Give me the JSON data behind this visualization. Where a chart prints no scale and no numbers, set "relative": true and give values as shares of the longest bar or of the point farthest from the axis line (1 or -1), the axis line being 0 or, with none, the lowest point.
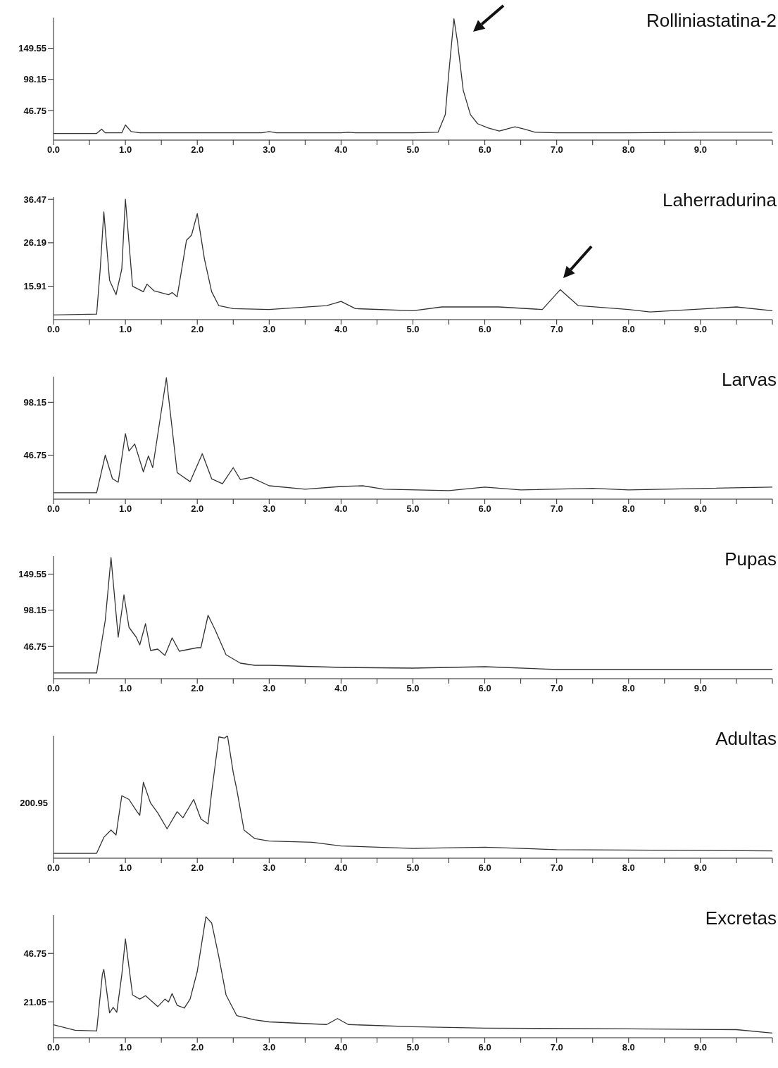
{
  "chart_data": [
    {
      "type": "line",
      "title": "Rolliniastatina-2",
      "color": "#333333",
      "xlim": [
        0,
        10
      ],
      "ylim": [
        -2,
        200
      ],
      "yticks": [
        46.75,
        98.15,
        149.55
      ],
      "xticks": [
        {
          "value": 0,
          "label": "0.0"
        },
        {
          "value": 0.5,
          "label": null
        },
        {
          "value": 1,
          "label": "1.0"
        },
        {
          "value": 1.5,
          "label": null
        },
        {
          "value": 2,
          "label": "2.0"
        },
        {
          "value": 2.5,
          "label": null
        },
        {
          "value": 3,
          "label": "3.0"
        },
        {
          "value": 3.5,
          "label": null
        },
        {
          "value": 4,
          "label": "4.0"
        },
        {
          "value": 4.5,
          "label": null
        },
        {
          "value": 5,
          "label": "5.0"
        },
        {
          "value": 5.5,
          "label": null
        },
        {
          "value": 6,
          "label": "6.0"
        },
        {
          "value": 6.5,
          "label": null
        },
        {
          "value": 7,
          "label": "7.0"
        },
        {
          "value": 7.5,
          "label": null
        },
        {
          "value": 8,
          "label": "8.0"
        },
        {
          "value": 8.5,
          "label": null
        },
        {
          "value": 9,
          "label": "9.0"
        },
        {
          "value": 9.5,
          "label": null
        },
        {
          "value": 10,
          "label": null
        }
      ],
      "x": [
        0,
        0.6,
        0.67,
        0.72,
        0.95,
        1.0,
        1.08,
        1.2,
        2.0,
        2.9,
        3.0,
        3.1,
        4.0,
        4.1,
        4.2,
        5.0,
        5.35,
        5.45,
        5.5,
        5.57,
        5.62,
        5.7,
        5.8,
        5.9,
        6.05,
        6.2,
        6.3,
        6.42,
        6.55,
        6.7,
        7.0,
        8.0,
        9.0,
        10.0
      ],
      "values": [
        9,
        9,
        16,
        10,
        10,
        23,
        12,
        10,
        10,
        10,
        12,
        10,
        10,
        11,
        10,
        10,
        11,
        40,
        110,
        198,
        160,
        80,
        40,
        25,
        18,
        13,
        16,
        20,
        16,
        11,
        10,
        10,
        11,
        11
      ]
    },
    {
      "type": "line",
      "title": "Laherradurina",
      "color": "#333333",
      "xlim": [
        0,
        10
      ],
      "ylim": [
        8,
        37
      ],
      "yticks": [
        15.91,
        26.19,
        36.47
      ],
      "xticks": [
        {
          "value": 0,
          "label": "0.0"
        },
        {
          "value": 0.5,
          "label": null
        },
        {
          "value": 1,
          "label": "1.0"
        },
        {
          "value": 1.5,
          "label": null
        },
        {
          "value": 2,
          "label": "2.0"
        },
        {
          "value": 2.5,
          "label": null
        },
        {
          "value": 3,
          "label": "3.0"
        },
        {
          "value": 3.5,
          "label": null
        },
        {
          "value": 4,
          "label": "4.0"
        },
        {
          "value": 4.5,
          "label": null
        },
        {
          "value": 5,
          "label": "5.0"
        },
        {
          "value": 5.5,
          "label": null
        },
        {
          "value": 6,
          "label": "6.0"
        },
        {
          "value": 6.5,
          "label": null
        },
        {
          "value": 7,
          "label": "7.0"
        },
        {
          "value": 7.5,
          "label": null
        },
        {
          "value": 8,
          "label": "8.0"
        },
        {
          "value": 8.5,
          "label": null
        },
        {
          "value": 9,
          "label": "9.0"
        },
        {
          "value": 9.5,
          "label": null
        },
        {
          "value": 10,
          "label": null
        }
      ],
      "x": [
        0,
        0.6,
        0.65,
        0.7,
        0.78,
        0.87,
        0.95,
        1.0,
        1.1,
        1.25,
        1.3,
        1.4,
        1.6,
        1.65,
        1.72,
        1.85,
        1.92,
        2.0,
        2.1,
        2.2,
        2.3,
        2.5,
        3.0,
        3.8,
        4.0,
        4.2,
        5.0,
        5.4,
        6.2,
        6.8,
        7.05,
        7.3,
        8.0,
        8.3,
        9.5,
        10.0
      ],
      "values": [
        9.1,
        9.3,
        20,
        33.5,
        17.3,
        13.9,
        20,
        36.5,
        15.9,
        14.6,
        16.4,
        14.8,
        13.9,
        14.4,
        13.4,
        26.8,
        28,
        33.1,
        22.3,
        14.6,
        11.3,
        10.6,
        10.4,
        11.3,
        12.3,
        10.6,
        10.1,
        11,
        11,
        10.4,
        15.1,
        11.3,
        10.4,
        9.8,
        11,
        10.1
      ]
    },
    {
      "type": "line",
      "title": "Larvas",
      "color": "#333333",
      "xlim": [
        0,
        10
      ],
      "ylim": [
        4,
        123
      ],
      "yticks": [
        46.75,
        98.15
      ],
      "xticks": [
        {
          "value": 0,
          "label": "0.0"
        },
        {
          "value": 0.5,
          "label": null
        },
        {
          "value": 1,
          "label": "1.0"
        },
        {
          "value": 1.5,
          "label": null
        },
        {
          "value": 2,
          "label": "2.0"
        },
        {
          "value": 2.5,
          "label": null
        },
        {
          "value": 3,
          "label": "3.0"
        },
        {
          "value": 3.5,
          "label": null
        },
        {
          "value": 4,
          "label": "4.0"
        },
        {
          "value": 4.5,
          "label": null
        },
        {
          "value": 5,
          "label": "5.0"
        },
        {
          "value": 5.5,
          "label": null
        },
        {
          "value": 6,
          "label": "6.0"
        },
        {
          "value": 6.5,
          "label": null
        },
        {
          "value": 7,
          "label": "7.0"
        },
        {
          "value": 7.5,
          "label": null
        },
        {
          "value": 8,
          "label": "8.0"
        },
        {
          "value": 8.5,
          "label": null
        },
        {
          "value": 9,
          "label": "9.0"
        },
        {
          "value": 9.5,
          "label": null
        },
        {
          "value": 10,
          "label": null
        }
      ],
      "x": [
        0,
        0.6,
        0.72,
        0.82,
        0.9,
        1.0,
        1.05,
        1.13,
        1.25,
        1.32,
        1.38,
        1.57,
        1.72,
        1.9,
        2.07,
        2.2,
        2.35,
        2.5,
        2.6,
        2.75,
        3.0,
        3.5,
        4.0,
        4.3,
        4.6,
        5.5,
        6.0,
        6.5,
        7.5,
        8.0,
        10.0
      ],
      "values": [
        10.3,
        10.3,
        46.75,
        23.8,
        20.4,
        67.7,
        50.8,
        57.6,
        30.5,
        46,
        34.6,
        121.8,
        29.8,
        21,
        48.1,
        23.8,
        19,
        34.6,
        23,
        25.1,
        17,
        13.6,
        16.3,
        17,
        13.6,
        12.3,
        15.7,
        13,
        14.5,
        13,
        15.7
      ]
    },
    {
      "type": "line",
      "title": "Pupas",
      "color": "#333333",
      "xlim": [
        0,
        10
      ],
      "ylim": [
        1,
        175
      ],
      "yticks": [
        46.75,
        98.15,
        149.55
      ],
      "xticks": [
        {
          "value": 0,
          "label": "0.0"
        },
        {
          "value": 0.5,
          "label": null
        },
        {
          "value": 1,
          "label": "1.0"
        },
        {
          "value": 1.5,
          "label": null
        },
        {
          "value": 2,
          "label": "2.0"
        },
        {
          "value": 2.5,
          "label": null
        },
        {
          "value": 3,
          "label": "3.0"
        },
        {
          "value": 3.5,
          "label": null
        },
        {
          "value": 4,
          "label": "4.0"
        },
        {
          "value": 4.5,
          "label": null
        },
        {
          "value": 5,
          "label": "5.0"
        },
        {
          "value": 5.5,
          "label": null
        },
        {
          "value": 6,
          "label": "6.0"
        },
        {
          "value": 6.5,
          "label": null
        },
        {
          "value": 7,
          "label": "7.0"
        },
        {
          "value": 7.5,
          "label": null
        },
        {
          "value": 8,
          "label": "8.0"
        },
        {
          "value": 8.5,
          "label": null
        },
        {
          "value": 9,
          "label": "9.0"
        },
        {
          "value": 9.5,
          "label": null
        },
        {
          "value": 10,
          "label": null
        }
      ],
      "x": [
        0,
        0.6,
        0.72,
        0.8,
        0.9,
        0.98,
        1.05,
        1.15,
        1.2,
        1.28,
        1.35,
        1.45,
        1.55,
        1.65,
        1.75,
        1.9,
        2.0,
        2.05,
        2.15,
        2.25,
        2.4,
        2.6,
        2.8,
        3.0,
        4.0,
        5.0,
        6.0,
        7.0,
        10.0
      ],
      "values": [
        9.2,
        9.2,
        84,
        173,
        60,
        120,
        74,
        60,
        49,
        79,
        41,
        43,
        34,
        59,
        40,
        43,
        45,
        45,
        91,
        70,
        35,
        23,
        20,
        20,
        17,
        16,
        18,
        14,
        14
      ]
    },
    {
      "type": "line",
      "title": "Adultas",
      "color": "#333333",
      "xlim": [
        0,
        10
      ],
      "relative": true,
      "annotations": [
        "200.95"
      ],
      "xticks": [
        {
          "value": 0,
          "label": "0.0"
        },
        {
          "value": 0.5,
          "label": null
        },
        {
          "value": 1,
          "label": "1.0"
        },
        {
          "value": 1.5,
          "label": null
        },
        {
          "value": 2,
          "label": "2.0"
        },
        {
          "value": 2.5,
          "label": null
        },
        {
          "value": 3,
          "label": "3.0"
        },
        {
          "value": 3.5,
          "label": null
        },
        {
          "value": 4,
          "label": "4.0"
        },
        {
          "value": 4.5,
          "label": null
        },
        {
          "value": 5,
          "label": "5.0"
        },
        {
          "value": 5.5,
          "label": null
        },
        {
          "value": 6,
          "label": "6.0"
        },
        {
          "value": 6.5,
          "label": null
        },
        {
          "value": 7,
          "label": "7.0"
        },
        {
          "value": 7.5,
          "label": null
        },
        {
          "value": 8,
          "label": "8.0"
        },
        {
          "value": 8.5,
          "label": null
        },
        {
          "value": 9,
          "label": "9.0"
        },
        {
          "value": 9.5,
          "label": null
        },
        {
          "value": 10,
          "label": null
        }
      ],
      "x": [
        0,
        0.6,
        0.7,
        0.8,
        0.87,
        0.95,
        1.05,
        1.15,
        1.2,
        1.25,
        1.35,
        1.45,
        1.58,
        1.72,
        1.8,
        1.95,
        2.05,
        2.15,
        2.2,
        2.3,
        2.38,
        2.42,
        2.5,
        2.55,
        2.65,
        2.8,
        3.0,
        3.6,
        4.0,
        5.0,
        6.0,
        7.0,
        10.0
      ],
      "values": [
        0.04,
        0.04,
        0.17,
        0.23,
        0.19,
        0.51,
        0.48,
        0.39,
        0.35,
        0.62,
        0.45,
        0.37,
        0.24,
        0.38,
        0.33,
        0.48,
        0.32,
        0.28,
        0.54,
        0.99,
        0.98,
        1,
        0.7,
        0.56,
        0.23,
        0.16,
        0.14,
        0.13,
        0.1,
        0.08,
        0.09,
        0.07,
        0.06
      ]
    },
    {
      "type": "line",
      "title": "Excretas",
      "color": "#333333",
      "xlim": [
        0,
        10
      ],
      "ylim": [
        2,
        67
      ],
      "yticks": [
        21.05,
        46.75
      ],
      "xticks": [
        {
          "value": 0,
          "label": "0.0"
        },
        {
          "value": 0.5,
          "label": null
        },
        {
          "value": 1,
          "label": "1.0"
        },
        {
          "value": 1.5,
          "label": null
        },
        {
          "value": 2,
          "label": "2.0"
        },
        {
          "value": 2.5,
          "label": null
        },
        {
          "value": 3,
          "label": "3.0"
        },
        {
          "value": 3.5,
          "label": null
        },
        {
          "value": 4,
          "label": "4.0"
        },
        {
          "value": 4.5,
          "label": null
        },
        {
          "value": 5,
          "label": "5.0"
        },
        {
          "value": 5.5,
          "label": null
        },
        {
          "value": 6,
          "label": "6.0"
        },
        {
          "value": 6.5,
          "label": null
        },
        {
          "value": 7,
          "label": "7.0"
        },
        {
          "value": 7.5,
          "label": null
        },
        {
          "value": 8,
          "label": "8.0"
        },
        {
          "value": 8.5,
          "label": null
        },
        {
          "value": 9,
          "label": "9.0"
        },
        {
          "value": 9.5,
          "label": null
        },
        {
          "value": 10,
          "label": null
        }
      ],
      "x": [
        0,
        0.3,
        0.6,
        0.68,
        0.7,
        0.78,
        0.83,
        0.88,
        0.95,
        1.0,
        1.05,
        1.1,
        1.2,
        1.28,
        1.45,
        1.55,
        1.6,
        1.65,
        1.72,
        1.82,
        1.9,
        2.0,
        2.12,
        2.2,
        2.3,
        2.4,
        2.55,
        2.8,
        3.0,
        3.8,
        3.95,
        4.1,
        5.0,
        6.0,
        8.0,
        9.5,
        10.0
      ],
      "values": [
        8.9,
        6,
        5.6,
        35.7,
        38.3,
        15.2,
        18.1,
        15.5,
        35.4,
        54.4,
        39.4,
        24.7,
        22.5,
        24.3,
        18.5,
        22.5,
        21,
        25.4,
        19.2,
        17.7,
        22.5,
        37.2,
        66.2,
        62.9,
        44.9,
        24.7,
        13.7,
        11.5,
        10.4,
        9,
        12.2,
        9,
        7.8,
        7.1,
        6.7,
        6.3,
        4.5
      ]
    }
  ]
}
